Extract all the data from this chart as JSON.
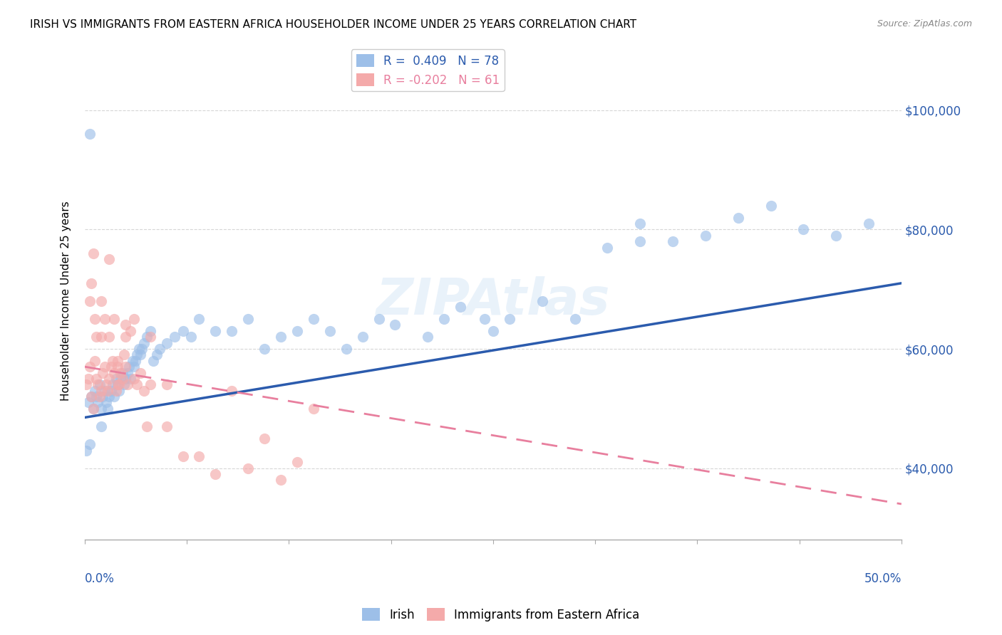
{
  "title": "IRISH VS IMMIGRANTS FROM EASTERN AFRICA HOUSEHOLDER INCOME UNDER 25 YEARS CORRELATION CHART",
  "source": "Source: ZipAtlas.com",
  "ylabel": "Householder Income Under 25 years",
  "y_tick_labels": [
    "$40,000",
    "$60,000",
    "$80,000",
    "$100,000"
  ],
  "y_tick_values": [
    40000,
    60000,
    80000,
    100000
  ],
  "legend_labels": [
    "Irish",
    "Immigrants from Eastern Africa"
  ],
  "r_irish": 0.409,
  "n_irish": 78,
  "r_eastern": -0.202,
  "n_eastern": 61,
  "blue_color": "#9DBFE8",
  "pink_color": "#F4AAAA",
  "blue_line": "#2B5BAD",
  "pink_line": "#E87F9E",
  "watermark": "ZIPAtlas",
  "xlim": [
    0.0,
    0.5
  ],
  "ylim": [
    28000,
    108000
  ],
  "irish_x": [
    0.001,
    0.002,
    0.003,
    0.004,
    0.005,
    0.006,
    0.007,
    0.008,
    0.009,
    0.01,
    0.01,
    0.011,
    0.012,
    0.013,
    0.014,
    0.015,
    0.016,
    0.017,
    0.018,
    0.019,
    0.02,
    0.021,
    0.022,
    0.023,
    0.024,
    0.025,
    0.026,
    0.027,
    0.028,
    0.029,
    0.03,
    0.031,
    0.032,
    0.033,
    0.034,
    0.035,
    0.036,
    0.038,
    0.04,
    0.042,
    0.044,
    0.046,
    0.05,
    0.055,
    0.06,
    0.065,
    0.07,
    0.08,
    0.09,
    0.1,
    0.11,
    0.12,
    0.13,
    0.14,
    0.15,
    0.16,
    0.17,
    0.18,
    0.19,
    0.21,
    0.22,
    0.23,
    0.245,
    0.26,
    0.28,
    0.3,
    0.32,
    0.34,
    0.36,
    0.38,
    0.4,
    0.42,
    0.44,
    0.46,
    0.48,
    0.003,
    0.25,
    0.34
  ],
  "irish_y": [
    43000,
    51000,
    44000,
    52000,
    50000,
    53000,
    52000,
    51000,
    54000,
    50000,
    47000,
    52000,
    53000,
    51000,
    50000,
    52000,
    53000,
    54000,
    52000,
    55000,
    54000,
    53000,
    55000,
    56000,
    54000,
    55000,
    56000,
    57000,
    55000,
    58000,
    57000,
    58000,
    59000,
    60000,
    59000,
    60000,
    61000,
    62000,
    63000,
    58000,
    59000,
    60000,
    61000,
    62000,
    63000,
    62000,
    65000,
    63000,
    63000,
    65000,
    60000,
    62000,
    63000,
    65000,
    63000,
    60000,
    62000,
    65000,
    64000,
    62000,
    65000,
    67000,
    65000,
    65000,
    68000,
    65000,
    77000,
    78000,
    78000,
    79000,
    82000,
    84000,
    80000,
    79000,
    81000,
    96000,
    63000,
    81000
  ],
  "eastern_x": [
    0.001,
    0.002,
    0.003,
    0.004,
    0.005,
    0.006,
    0.007,
    0.008,
    0.009,
    0.01,
    0.011,
    0.012,
    0.013,
    0.014,
    0.015,
    0.016,
    0.017,
    0.018,
    0.019,
    0.02,
    0.021,
    0.022,
    0.023,
    0.024,
    0.025,
    0.026,
    0.028,
    0.03,
    0.032,
    0.034,
    0.036,
    0.038,
    0.04,
    0.05,
    0.06,
    0.07,
    0.08,
    0.09,
    0.1,
    0.11,
    0.12,
    0.13,
    0.14,
    0.003,
    0.004,
    0.005,
    0.006,
    0.007,
    0.01,
    0.012,
    0.015,
    0.018,
    0.02,
    0.025,
    0.03,
    0.04,
    0.05,
    0.01,
    0.015,
    0.02,
    0.025
  ],
  "eastern_y": [
    54000,
    55000,
    57000,
    52000,
    50000,
    58000,
    55000,
    54000,
    52000,
    53000,
    56000,
    57000,
    54000,
    53000,
    55000,
    57000,
    58000,
    56000,
    53000,
    57000,
    54000,
    56000,
    55000,
    59000,
    57000,
    54000,
    63000,
    55000,
    54000,
    56000,
    53000,
    47000,
    54000,
    47000,
    42000,
    42000,
    39000,
    53000,
    40000,
    45000,
    38000,
    41000,
    50000,
    68000,
    71000,
    76000,
    65000,
    62000,
    62000,
    65000,
    62000,
    65000,
    58000,
    64000,
    65000,
    62000,
    54000,
    68000,
    75000,
    54000,
    62000
  ],
  "trend_irish_x0": 0.0,
  "trend_irish_x1": 0.5,
  "trend_irish_y0": 48500,
  "trend_irish_y1": 71000,
  "trend_eastern_x0": 0.0,
  "trend_eastern_x1": 0.5,
  "trend_eastern_y0": 57000,
  "trend_eastern_y1": 34000
}
